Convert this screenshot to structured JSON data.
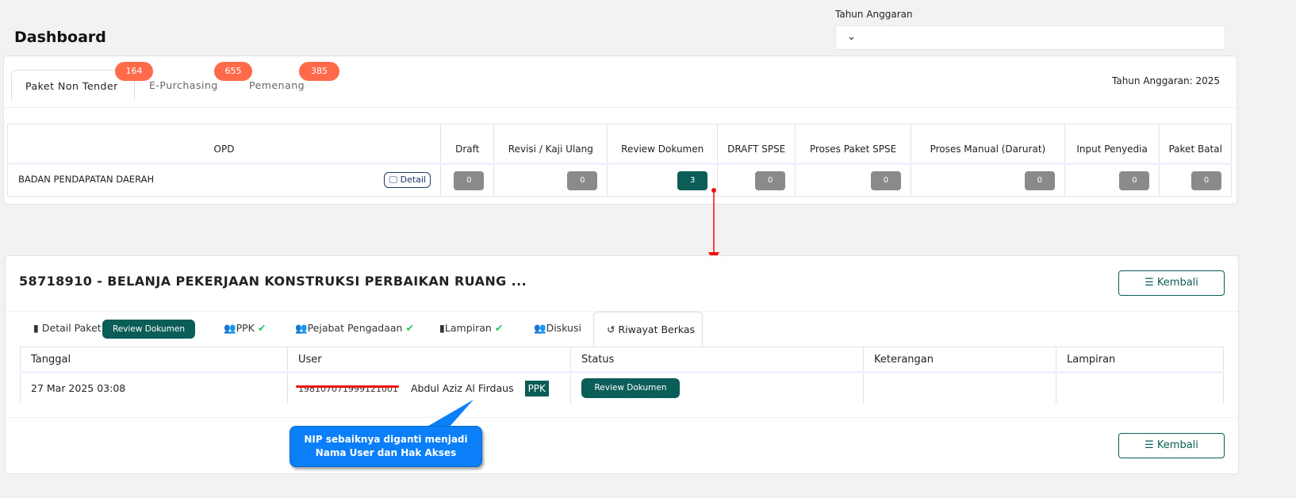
{
  "header": {
    "title": "Dashboard",
    "tahun_label": "Tahun Anggaran",
    "tahun_value": "⌄"
  },
  "tabs": [
    {
      "label": "Paket Non Tender",
      "badge": "164"
    },
    {
      "label": "E-Purchasing",
      "badge": "655"
    },
    {
      "label": "Pemenang",
      "badge": "385"
    }
  ],
  "tahun_info": "Tahun Anggaran: 2025",
  "summary": {
    "columns": [
      "OPD",
      "Draft",
      "Revisi / Kaji Ulang",
      "Review Dokumen",
      "DRAFT SPSE",
      "Proses Paket SPSE",
      "Proses Manual (Darurat)",
      "Input Penyedia",
      "Paket Batal"
    ],
    "row": {
      "opd": "BADAN PENDAPATAN DAERAH",
      "detail": "Detail",
      "values": [
        "0",
        "0",
        "3",
        "0",
        "0",
        "0",
        "0",
        "0"
      ]
    }
  },
  "detail": {
    "title": "58718910 - BELANJA PEKERJAAN KONSTRUKSI PERBAIKAN RUANG ...",
    "kembali": "Kembali",
    "tabs": {
      "detail_paket": "Detail Paket",
      "status_badge": "Review Dokumen",
      "ppk": "PPK",
      "pejabat": "Pejabat Pengadaan",
      "lampiran": "Lampiran",
      "diskusi": "Diskusi",
      "riwayat": "Riwayat Berkas"
    },
    "columns": [
      "Tanggal",
      "User",
      "Status",
      "Keterangan",
      "Lampiran"
    ],
    "row": {
      "tanggal": "27 Mar 2025 03:08",
      "nip": "198107071999121001",
      "name": "Abdul Aziz Al Firdaus",
      "role": "PPK",
      "status": "Review Dokumen",
      "keterangan": "",
      "lampiran": ""
    }
  },
  "annotation": {
    "line1": "NIP sebaiknya diganti menjadi",
    "line2": "Nama User dan Hak Akses"
  },
  "colors": {
    "accent": "#0b5e58",
    "badge": "#ff6b4a",
    "callout": "#0b7ff7",
    "arrow": "#e11"
  }
}
